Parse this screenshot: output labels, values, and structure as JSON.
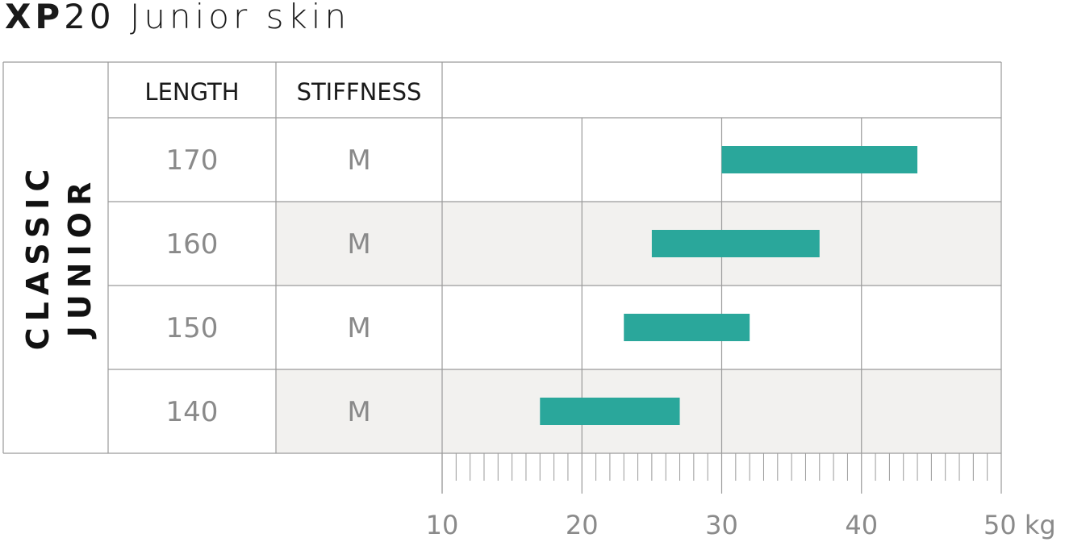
{
  "title": {
    "brand": "XP",
    "model": "20",
    "rest": " Junior skin"
  },
  "side_label": {
    "line1": "CLASSIC",
    "line2": "JUNIOR"
  },
  "headers": {
    "length": "LENGTH",
    "stiffness": "STIFFNESS"
  },
  "colors": {
    "bar": "#2aa79b",
    "grid": "#9a9a9a",
    "shade": "#f2f1ef"
  },
  "chart_data": {
    "type": "bar",
    "orientation": "horizontal-range",
    "xlim": [
      10,
      50
    ],
    "xticks": [
      "10",
      "20",
      "30",
      "40",
      "50 kg"
    ],
    "minor_tick_step": 1,
    "rows": [
      {
        "length": "170",
        "stiffness": "M",
        "min": 30,
        "max": 44,
        "shaded": false
      },
      {
        "length": "160",
        "stiffness": "M",
        "min": 25,
        "max": 37,
        "shaded": true
      },
      {
        "length": "150",
        "stiffness": "M",
        "min": 23,
        "max": 32,
        "shaded": false
      },
      {
        "length": "140",
        "stiffness": "M",
        "min": 17,
        "max": 27,
        "shaded": true
      }
    ]
  }
}
